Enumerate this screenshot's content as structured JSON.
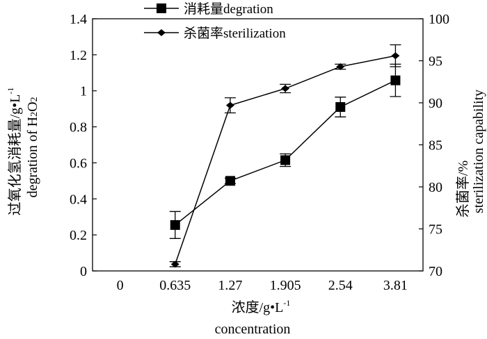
{
  "chart_data": {
    "type": "line",
    "categories": [
      "0",
      "0.635",
      "1.27",
      "1.905",
      "2.54",
      "3.81"
    ],
    "x_label": {
      "zh": "浓度/g•L",
      "sup": "-1",
      "en": "concentration"
    },
    "y_left": {
      "label_zh": "过氧化氢消耗量/g•L",
      "label_zh_sup": "-1",
      "label_en": "degration of H",
      "label_en_sub1": "2",
      "label_en_mid": "O",
      "label_en_sub2": "2",
      "ylim": [
        0,
        1.4
      ],
      "ticks": [
        "0",
        "0.2",
        "0.4",
        "0.6",
        "0.8",
        "1",
        "1.2",
        "1.4"
      ]
    },
    "y_right": {
      "label_zh": "杀菌率/%",
      "label_en": "sterilization capability",
      "ylim": [
        70,
        100
      ],
      "ticks": [
        "70",
        "75",
        "80",
        "85",
        "90",
        "95",
        "100"
      ]
    },
    "legend": {
      "position": "top-center"
    },
    "series": [
      {
        "name": "消耗量degration",
        "axis": "left",
        "marker": "square",
        "color": "#000000",
        "points": [
          {
            "x": "0.635",
            "y": 0.255,
            "err": 0.075
          },
          {
            "x": "1.27",
            "y": 0.5,
            "err": 0.015
          },
          {
            "x": "1.905",
            "y": 0.615,
            "err": 0.035
          },
          {
            "x": "2.54",
            "y": 0.91,
            "err": 0.055
          },
          {
            "x": "3.81",
            "y": 1.058,
            "err": 0.09
          }
        ]
      },
      {
        "name": "杀菌率sterilization",
        "axis": "right",
        "marker": "diamond",
        "color": "#000000",
        "points": [
          {
            "x": "0.635",
            "y": 70.8,
            "err": 0.3
          },
          {
            "x": "1.27",
            "y": 89.7,
            "err": 0.9
          },
          {
            "x": "1.905",
            "y": 91.7,
            "err": 0.5
          },
          {
            "x": "2.54",
            "y": 94.3,
            "err": 0.3
          },
          {
            "x": "3.81",
            "y": 95.6,
            "err": 1.3
          }
        ]
      }
    ]
  }
}
